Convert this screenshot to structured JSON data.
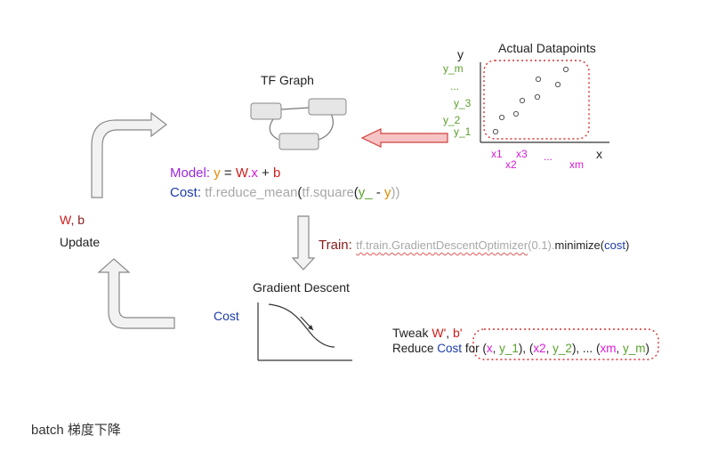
{
  "tf_graph": {
    "title": "TF Graph"
  },
  "datapoints": {
    "title": "Actual Datapoints",
    "y_axis": "y",
    "x_axis": "x",
    "y_labels": [
      "y_m",
      "...",
      "y_3",
      "y_2",
      "y_1"
    ],
    "x_labels": [
      "x1",
      "x3",
      "x2",
      "...",
      "xm"
    ]
  },
  "model": {
    "label": "Model:",
    "y": "y",
    "eq": "=",
    "w": "W",
    "dot_x": ".x",
    "plus": "+",
    "b": "b"
  },
  "cost_line": {
    "label": "Cost:",
    "fn": "tf.reduce_mean",
    "open1": "(",
    "fn2": "tf.square",
    "open2": "(",
    "y_": "y_",
    "minus": "-",
    "y": "y",
    "close": "))"
  },
  "left": {
    "wb_w": "W",
    "wb_sep": ", b",
    "update": "Update"
  },
  "train": {
    "label": "Train:",
    "opt": "tf.train.GradientDescentOptimizer",
    "arg": "(0.1).",
    "minimize": "minimize",
    "open": "(",
    "cost": "cost",
    "close": ")"
  },
  "gradient": {
    "title": "Gradient Descent",
    "cost_axis": "Cost"
  },
  "tweak": {
    "line1_text": "Tweak ",
    "w": "W'",
    "sep": ", ",
    "b": "b'",
    "line2_reduce": "Reduce ",
    "line2_cost": "Cost",
    "line2_for": " for (",
    "p1x": "x",
    "c1": ", ",
    "p1y": "y_1",
    "p1end": "), (",
    "p2x": "x2",
    "c2": ", ",
    "p2y": "y_2",
    "p2end": "), ... (",
    "pmx": "xm",
    "cm": ", ",
    "pmy": "y_m",
    "pmend": ")"
  },
  "caption": "batch 梯度下降",
  "colors": {
    "purple": "#9b27d8",
    "orange": "#e38a00",
    "red": "#d01b1b",
    "green": "#5aa02c",
    "blue": "#1c3aa9",
    "magenta": "#d81bd8",
    "arrow_red_fill": "#f6c4c4",
    "arrow_gray_fill": "#f2f2f2"
  }
}
